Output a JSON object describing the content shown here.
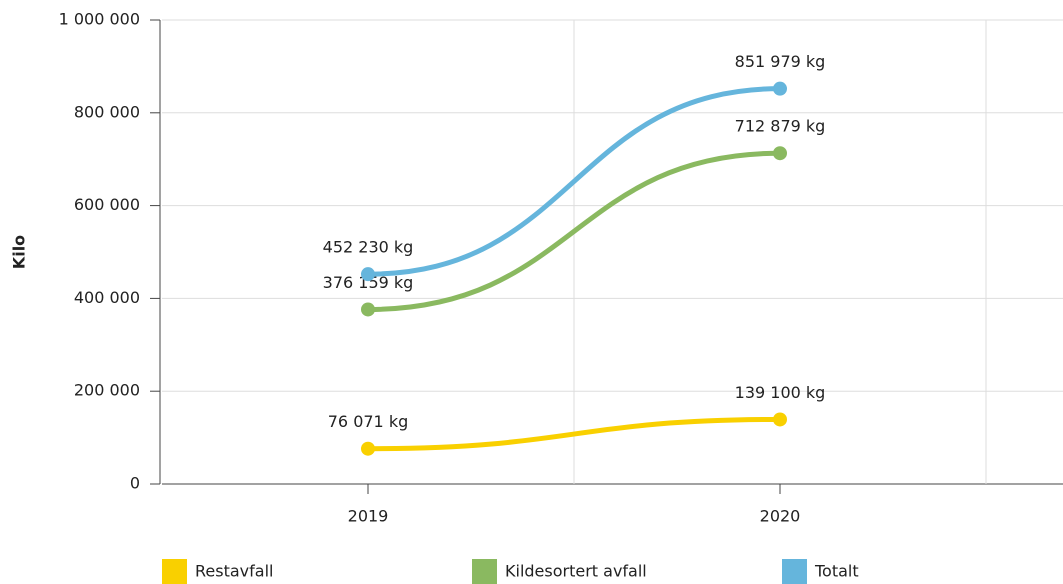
{
  "chart_data": {
    "type": "line",
    "ylabel": "Kilo",
    "categories": [
      "2019",
      "2020"
    ],
    "series": [
      {
        "name": "Restavfall",
        "color": "#f9d000",
        "values": [
          76071,
          139100
        ],
        "value_labels": [
          "76 071 kg",
          "139 100 kg"
        ]
      },
      {
        "name": "Kildesortert avfall",
        "color": "#8ab960",
        "values": [
          376159,
          712879
        ],
        "value_labels": [
          "376 159 kg",
          "712 879 kg"
        ]
      },
      {
        "name": "Totalt",
        "color": "#65b5dc",
        "values": [
          452230,
          851979
        ],
        "value_labels": [
          "452 230 kg",
          "851 979 kg"
        ]
      }
    ],
    "ylim": [
      0,
      1000000
    ],
    "yticks": [
      0,
      {
        "value": 200000,
        "label": "200 000"
      },
      {
        "value": 400000,
        "label": "400 000"
      },
      {
        "value": 600000,
        "label": "600 000"
      },
      {
        "value": 800000,
        "label": "800 000"
      },
      {
        "value": 1000000,
        "label": "1 000 000"
      }
    ],
    "grid": true,
    "legend": "bottom"
  }
}
